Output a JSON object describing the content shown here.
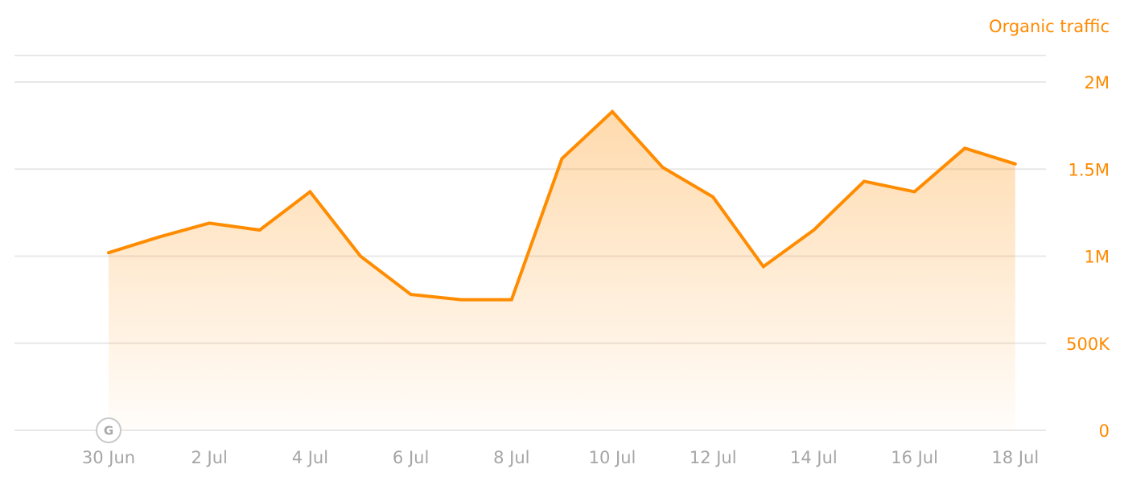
{
  "chart_data": {
    "type": "area",
    "series_label": "Organic traffic",
    "x_tick_labels": [
      "30 Jun",
      "2 Jul",
      "4 Jul",
      "6 Jul",
      "8 Jul",
      "10 Jul",
      "12 Jul",
      "14 Jul",
      "16 Jul",
      "18 Jul"
    ],
    "y_tick_labels": [
      "0",
      "500K",
      "1M",
      "1.5M",
      "2M"
    ],
    "y_tick_values": [
      0,
      500000,
      1000000,
      1500000,
      2000000
    ],
    "ylim": [
      0,
      2000000
    ],
    "grid": true,
    "x": [
      "30 Jun",
      "1 Jul",
      "2 Jul",
      "3 Jul",
      "4 Jul",
      "5 Jul",
      "6 Jul",
      "7 Jul",
      "8 Jul",
      "9 Jul",
      "10 Jul",
      "11 Jul",
      "12 Jul",
      "13 Jul",
      "14 Jul",
      "15 Jul",
      "16 Jul",
      "17 Jul",
      "18 Jul"
    ],
    "series": [
      {
        "values": [
          1020000,
          1110000,
          1190000,
          1150000,
          1370000,
          1000000,
          780000,
          750000,
          750000,
          1560000,
          1830000,
          1510000,
          1340000,
          940000,
          1150000,
          1430000,
          1370000,
          1620000,
          1530000
        ],
        "color": "#ff8c00"
      }
    ],
    "annotations": [
      {
        "x": "30 Jun",
        "label": "G",
        "icon": "google-update-icon"
      }
    ]
  }
}
